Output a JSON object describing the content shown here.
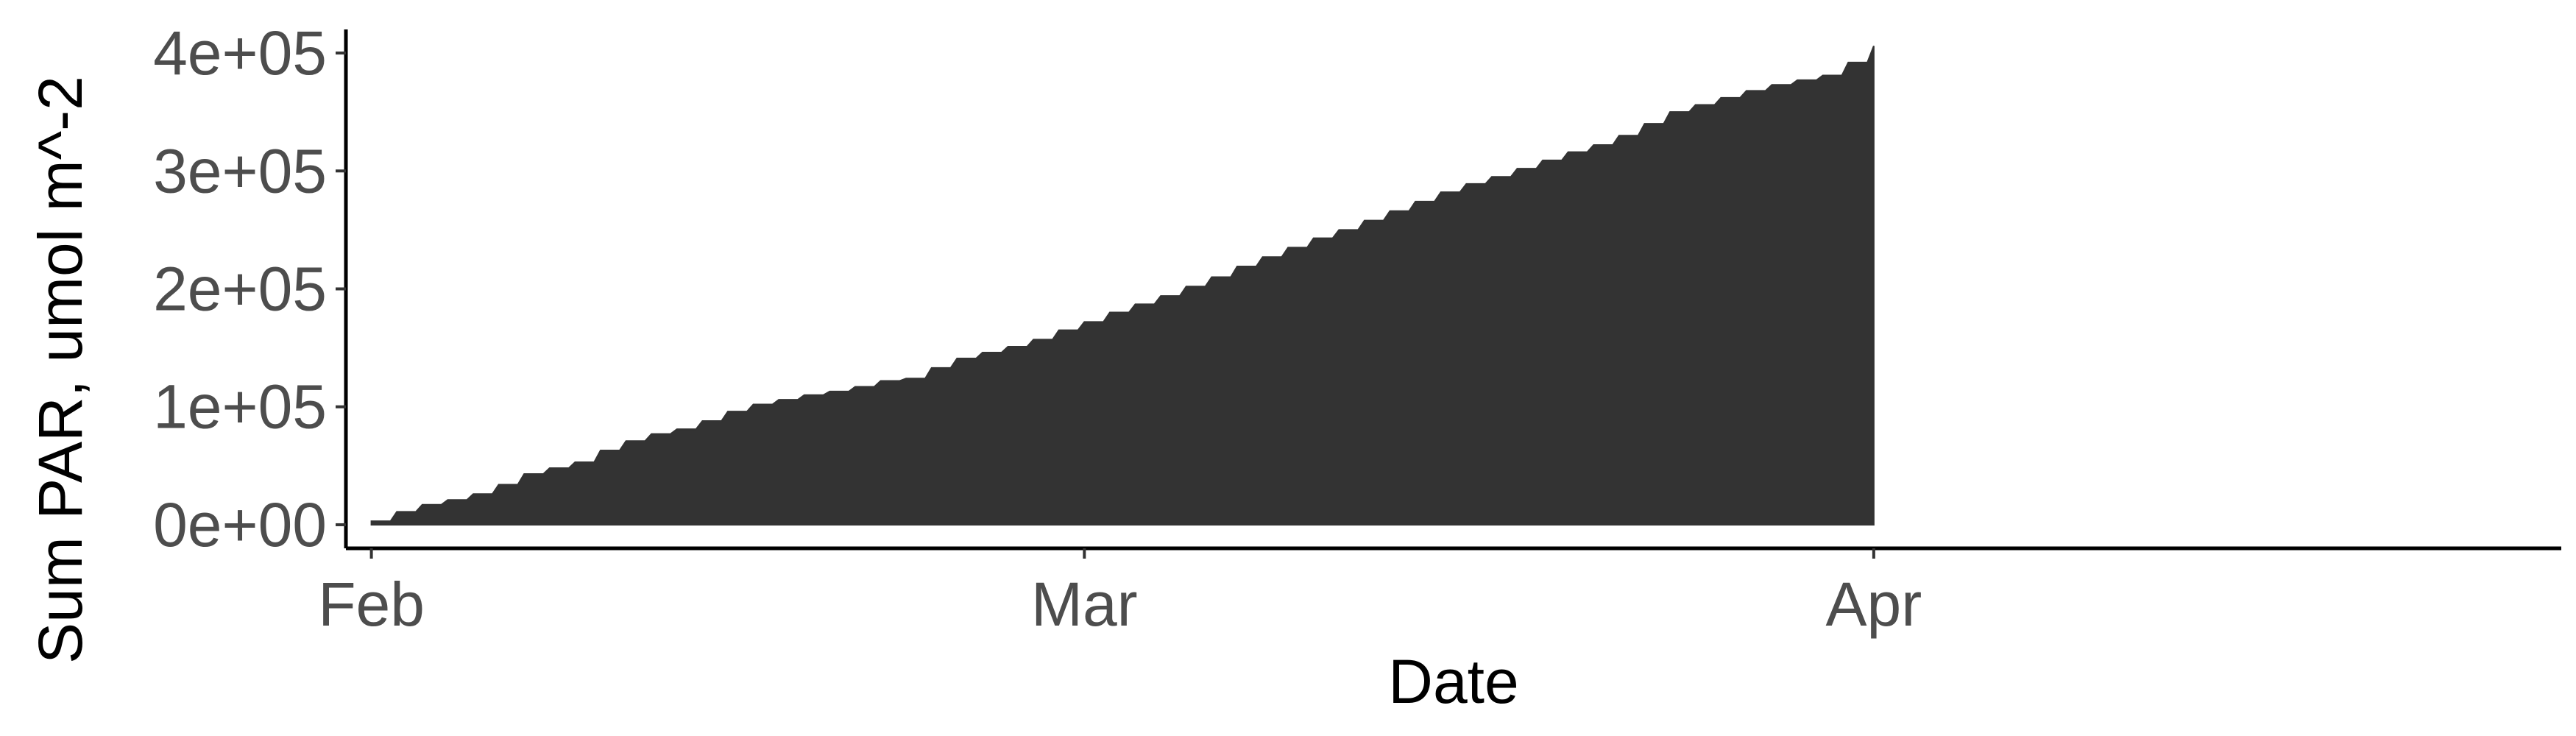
{
  "chart_data": {
    "type": "area",
    "title": "",
    "xlabel": "Date",
    "ylabel": "Sum PAR, umol m^-2",
    "xlim": [
      "2021-01-31",
      "2021-04-28"
    ],
    "ylim": [
      -20000,
      420000
    ],
    "x_ticks": [
      {
        "date": "2021-02-01",
        "label": "Feb"
      },
      {
        "date": "2021-03-01",
        "label": "Mar"
      },
      {
        "date": "2021-04-01",
        "label": "Apr"
      }
    ],
    "y_ticks": [
      {
        "value": 0,
        "label": "0e+00"
      },
      {
        "value": 100000,
        "label": "1e+05"
      },
      {
        "value": 200000,
        "label": "2e+05"
      },
      {
        "value": 300000,
        "label": "3e+05"
      },
      {
        "value": 400000,
        "label": "4e+05"
      }
    ],
    "grid": false,
    "legend": "none",
    "fill_color": "#333333",
    "series": [
      {
        "x": [
          "2021-02-01",
          "2021-02-02",
          "2021-02-03",
          "2021-02-04",
          "2021-02-05",
          "2021-02-06",
          "2021-02-07",
          "2021-02-08",
          "2021-02-09",
          "2021-02-10",
          "2021-02-11",
          "2021-02-12",
          "2021-02-13",
          "2021-02-14",
          "2021-02-15",
          "2021-02-16",
          "2021-02-17",
          "2021-02-18",
          "2021-02-19",
          "2021-02-20",
          "2021-02-21",
          "2021-02-22",
          "2021-02-23",
          "2021-02-24",
          "2021-02-25",
          "2021-02-26",
          "2021-02-27",
          "2021-02-28",
          "2021-03-01",
          "2021-03-02",
          "2021-03-03",
          "2021-03-04",
          "2021-03-05",
          "2021-03-06",
          "2021-03-07",
          "2021-03-08",
          "2021-03-09",
          "2021-03-10",
          "2021-03-11",
          "2021-03-12",
          "2021-03-13",
          "2021-03-14",
          "2021-03-15",
          "2021-03-16",
          "2021-03-17",
          "2021-03-18",
          "2021-03-19",
          "2021-03-20",
          "2021-03-21",
          "2021-03-22",
          "2021-03-23",
          "2021-03-24",
          "2021-03-25",
          "2021-03-26",
          "2021-03-27",
          "2021-03-28",
          "2021-03-29",
          "2021-03-30",
          "2021-03-31",
          "2021-04-01"
        ],
        "y": [
          3000,
          11000,
          17000,
          21000,
          26000,
          34000,
          43000,
          48000,
          53000,
          63000,
          71000,
          77000,
          81000,
          88000,
          96000,
          102000,
          106000,
          110000,
          113000,
          117000,
          122000,
          124000,
          133000,
          141000,
          146000,
          151000,
          157000,
          165000,
          172000,
          180000,
          187000,
          194000,
          202000,
          210000,
          219000,
          227000,
          235000,
          243000,
          250000,
          258000,
          266000,
          274000,
          282000,
          289000,
          295000,
          302000,
          309000,
          316000,
          322000,
          330000,
          340000,
          350000,
          356000,
          362000,
          368000,
          373000,
          377000,
          381000,
          392000,
          406000
        ]
      }
    ]
  }
}
